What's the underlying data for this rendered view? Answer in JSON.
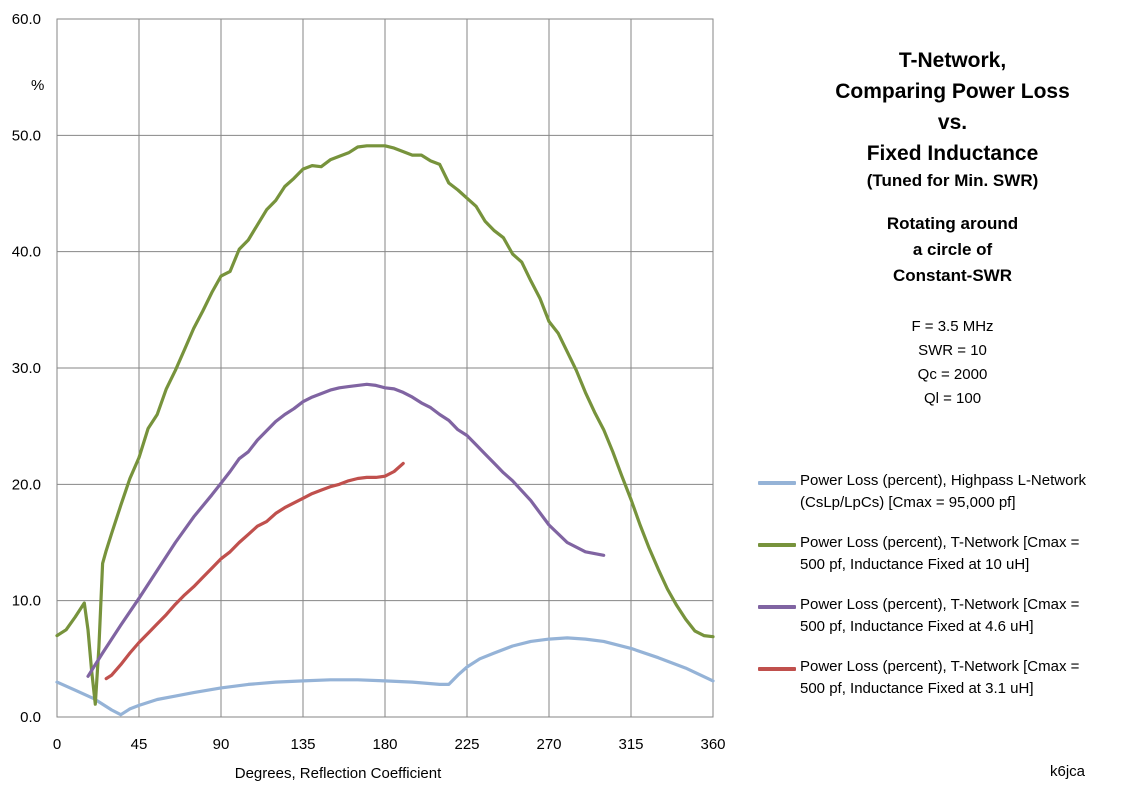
{
  "chart_data": {
    "type": "line",
    "title_lines": [
      "T-Network,",
      "Comparing Power Loss",
      "vs.",
      "Fixed Inductance"
    ],
    "subtitle": "(Tuned for Min. SWR)",
    "rotation_lines": [
      "Rotating around",
      "a circle of",
      "Constant-SWR"
    ],
    "params": [
      "F = 3.5 MHz",
      "SWR = 10",
      "Qc = 2000",
      "Ql = 100"
    ],
    "xlabel": "Degrees, Reflection Coefficient",
    "ylabel": "%",
    "xlim": [
      0,
      360
    ],
    "ylim": [
      0,
      60
    ],
    "x_ticks": [
      "0",
      "45",
      "90",
      "135",
      "180",
      "225",
      "270",
      "315",
      "360"
    ],
    "y_ticks": [
      "0.0",
      "10.0",
      "20.0",
      "30.0",
      "40.0",
      "50.0",
      "60.0"
    ],
    "grid": true,
    "legend_position": "right",
    "series": [
      {
        "name": "Power Loss (percent), Highpass L-Network (CsLp/LpCs)  [Cmax = 95,000 pf]",
        "color": "#95B3D7",
        "x": [
          0,
          10,
          20,
          30,
          35,
          40,
          45,
          55,
          65,
          75,
          90,
          105,
          120,
          135,
          150,
          165,
          180,
          195,
          210,
          215,
          220,
          225,
          232,
          240,
          250,
          260,
          270,
          280,
          290,
          300,
          315,
          330,
          345,
          360
        ],
        "values": [
          3.0,
          2.3,
          1.6,
          0.6,
          0.2,
          0.7,
          1.0,
          1.5,
          1.8,
          2.1,
          2.5,
          2.8,
          3.0,
          3.1,
          3.2,
          3.2,
          3.1,
          3.0,
          2.8,
          2.8,
          3.6,
          4.3,
          5.0,
          5.5,
          6.1,
          6.5,
          6.7,
          6.8,
          6.7,
          6.5,
          5.9,
          5.1,
          4.2,
          3.1
        ]
      },
      {
        "name": "Power Loss (percent), T-Network  [Cmax = 500 pf, Inductance Fixed at 10 uH]",
        "color": "#77933C",
        "x": [
          0,
          5,
          10,
          15,
          17,
          19,
          21,
          23,
          25,
          27,
          30,
          35,
          40,
          45,
          50,
          55,
          60,
          65,
          70,
          75,
          80,
          85,
          90,
          95,
          100,
          105,
          110,
          115,
          120,
          125,
          130,
          135,
          140,
          145,
          150,
          155,
          160,
          165,
          170,
          175,
          180,
          185,
          190,
          195,
          200,
          205,
          210,
          215,
          220,
          225,
          230,
          235,
          240,
          245,
          250,
          255,
          260,
          265,
          270,
          275,
          280,
          285,
          290,
          295,
          300,
          305,
          310,
          315,
          320,
          325,
          330,
          335,
          340,
          345,
          350,
          355,
          360
        ],
        "values": [
          7.0,
          7.5,
          8.6,
          9.8,
          7.5,
          4.0,
          1.1,
          6.0,
          13.2,
          14.3,
          15.8,
          18.2,
          20.5,
          22.3,
          24.8,
          26.0,
          28.2,
          29.8,
          31.6,
          33.4,
          34.9,
          36.5,
          37.9,
          38.3,
          40.2,
          41.0,
          42.3,
          43.6,
          44.4,
          45.6,
          46.3,
          47.1,
          47.4,
          47.3,
          47.9,
          48.2,
          48.5,
          49.0,
          49.1,
          49.1,
          49.1,
          48.9,
          48.6,
          48.3,
          48.3,
          47.8,
          47.5,
          45.9,
          45.3,
          44.6,
          43.9,
          42.6,
          41.8,
          41.2,
          39.8,
          39.1,
          37.5,
          36.0,
          34.0,
          33.0,
          31.4,
          29.8,
          27.9,
          26.2,
          24.7,
          22.8,
          20.7,
          18.7,
          16.5,
          14.5,
          12.7,
          11.0,
          9.6,
          8.4,
          7.4,
          7.0,
          6.9
        ]
      },
      {
        "name": "Power Loss (percent), T-Network  [Cmax = 500 pf, Inductance Fixed at 4.6 uH]",
        "color": "#8064A2",
        "x": [
          17,
          25,
          35,
          45,
          55,
          65,
          75,
          85,
          90,
          95,
          100,
          105,
          110,
          115,
          120,
          125,
          130,
          135,
          140,
          145,
          150,
          155,
          160,
          165,
          170,
          175,
          180,
          185,
          190,
          195,
          200,
          205,
          210,
          215,
          220,
          225,
          230,
          235,
          240,
          245,
          250,
          260,
          270,
          280,
          290,
          300
        ],
        "values": [
          3.5,
          5.5,
          7.9,
          10.2,
          12.6,
          15.0,
          17.2,
          19.1,
          20.1,
          21.1,
          22.2,
          22.8,
          23.8,
          24.6,
          25.4,
          26.0,
          26.5,
          27.1,
          27.5,
          27.8,
          28.1,
          28.3,
          28.4,
          28.5,
          28.6,
          28.5,
          28.3,
          28.2,
          27.9,
          27.5,
          27.0,
          26.6,
          26.0,
          25.5,
          24.7,
          24.2,
          23.4,
          22.6,
          21.8,
          21.0,
          20.3,
          18.6,
          16.5,
          15.0,
          14.2,
          13.9
        ]
      },
      {
        "name": "Power Loss (percent), T-Network  [Cmax = 500 pf, Inductance Fixed at 3.1 uH]",
        "color": "#C0504D",
        "x": [
          27,
          30,
          35,
          40,
          45,
          50,
          55,
          60,
          65,
          70,
          75,
          80,
          85,
          90,
          95,
          100,
          105,
          110,
          115,
          120,
          125,
          130,
          135,
          140,
          145,
          150,
          155,
          160,
          165,
          170,
          175,
          180,
          185,
          190
        ],
        "values": [
          3.3,
          3.6,
          4.5,
          5.5,
          6.4,
          7.2,
          8.0,
          8.8,
          9.7,
          10.5,
          11.2,
          12.0,
          12.8,
          13.6,
          14.2,
          15.0,
          15.7,
          16.4,
          16.8,
          17.5,
          18.0,
          18.4,
          18.8,
          19.2,
          19.5,
          19.8,
          20.0,
          20.3,
          20.5,
          20.6,
          20.6,
          20.7,
          21.1,
          21.8
        ]
      }
    ]
  },
  "credit": "k6jca"
}
